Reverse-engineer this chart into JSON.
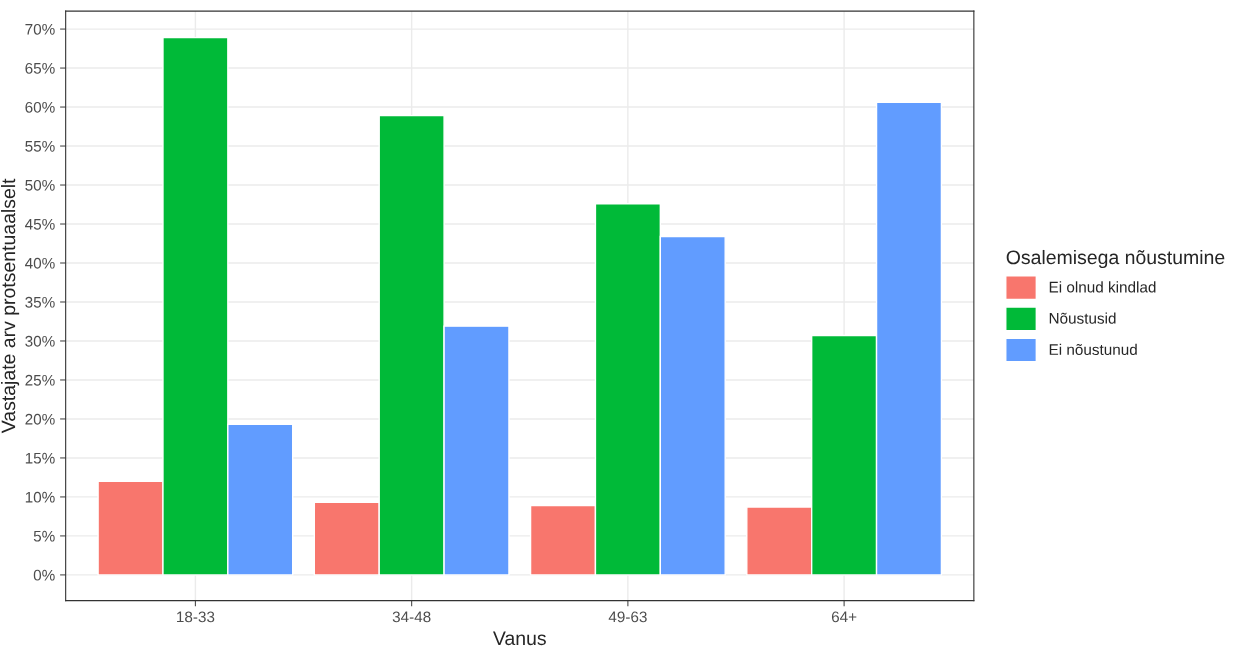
{
  "chart_data": {
    "type": "bar",
    "xlabel": "Vanus",
    "ylabel": "Vastajate arv protsentuaalselt",
    "legend_title": "Osalemisega nõustumine",
    "categories": [
      "18-33",
      "34-48",
      "49-63",
      "64+"
    ],
    "series": [
      {
        "name": "Ei olnud kindlad",
        "color": "#f8766d",
        "values": [
          12.0,
          9.3,
          8.9,
          8.7
        ]
      },
      {
        "name": "Nõustusid",
        "color": "#00ba38",
        "values": [
          68.9,
          58.9,
          47.6,
          30.7
        ]
      },
      {
        "name": "Ei nõustunud",
        "color": "#619cff",
        "values": [
          19.3,
          31.9,
          43.4,
          60.6
        ]
      }
    ],
    "ylim": [
      -3.3,
      72.3
    ],
    "yticks": [
      {
        "value": 0,
        "label": "0%"
      },
      {
        "value": 5,
        "label": "5%"
      },
      {
        "value": 10,
        "label": "10%"
      },
      {
        "value": 15,
        "label": "15%"
      },
      {
        "value": 20,
        "label": "20%"
      },
      {
        "value": 25,
        "label": "25%"
      },
      {
        "value": 30,
        "label": "30%"
      },
      {
        "value": 35,
        "label": "35%"
      },
      {
        "value": 40,
        "label": "40%"
      },
      {
        "value": 45,
        "label": "45%"
      },
      {
        "value": 50,
        "label": "50%"
      },
      {
        "value": 55,
        "label": "55%"
      },
      {
        "value": 60,
        "label": "60%"
      },
      {
        "value": 65,
        "label": "65%"
      },
      {
        "value": 70,
        "label": "70%"
      }
    ],
    "grid": true,
    "legend": "right"
  }
}
